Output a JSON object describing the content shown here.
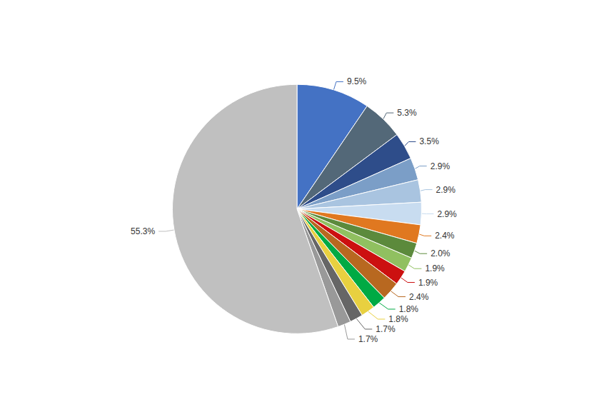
{
  "chart_data": {
    "type": "pie",
    "values": [
      9.5,
      5.3,
      3.5,
      2.9,
      2.9,
      2.9,
      2.4,
      2.0,
      1.9,
      1.9,
      2.4,
      1.8,
      1.8,
      1.7,
      1.7,
      55.3
    ],
    "value_labels": [
      "9.5%",
      "5.3%",
      "3.5%",
      "2.9%",
      "2.9%",
      "2.9%",
      "2.4%",
      "2.0%",
      "1.9%",
      "1.9%",
      "2.4%",
      "1.8%",
      "1.8%",
      "1.7%",
      "1.7%",
      "55.3%"
    ],
    "colors": [
      "#4472C4",
      "#536878",
      "#2E4D8A",
      "#7B9EC7",
      "#A9C4E0",
      "#C8DCF0",
      "#E07820",
      "#5C8A3C",
      "#90C060",
      "#CC1010",
      "#B86820",
      "#00AA44",
      "#E8D040",
      "#666666",
      "#999999",
      "#C0C0C0"
    ],
    "data_labels": true
  }
}
